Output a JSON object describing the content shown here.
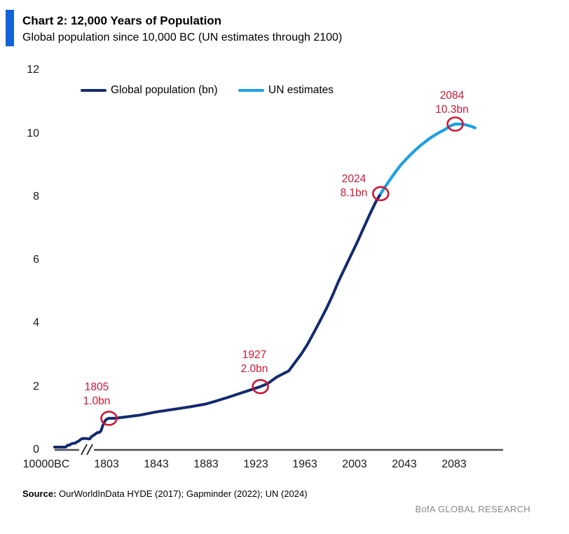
{
  "header": {
    "title": "Chart 2: 12,000 Years of Population",
    "subtitle": "Global population since 10,000 BC (UN estimates through 2100)"
  },
  "theme": {
    "accent_blue": "#1262d9",
    "historical_navy": "#132a6f",
    "projection_blue": "#1ea0e3",
    "callout_red": "#ce1633",
    "axis_color": "#4d4d4d",
    "brand_gray": "#8a8a8a"
  },
  "legend": {
    "items": [
      {
        "label": "Global population (bn)",
        "color": "#132a6f"
      },
      {
        "label": "UN estimates",
        "color": "#1ea0e3"
      }
    ]
  },
  "axes": {
    "y_ticks": [
      "12",
      "10",
      "8",
      "6",
      "4",
      "2",
      "0"
    ],
    "x_ticks": [
      "10000BC",
      "1803",
      "1843",
      "1883",
      "1923",
      "1963",
      "2003",
      "2043",
      "2083"
    ]
  },
  "annotations": [
    {
      "year": "1805",
      "value": "1.0bn"
    },
    {
      "year": "1927",
      "value": "2.0bn"
    },
    {
      "year": "2024",
      "value": "8.1bn"
    },
    {
      "year": "2084",
      "value": "10.3bn"
    }
  ],
  "footer": {
    "source_label": "Source:",
    "source_text": "OurWorldInData HYDE (2017); Gapminder (2022); UN (2024)",
    "brand": "BofA GLOBAL RESEARCH"
  },
  "chart_data": {
    "type": "line",
    "title": "Chart 2: 12,000 Years of Population",
    "subtitle": "Global population since 10,000 BC (UN estimates through 2100)",
    "unit": "billions of people",
    "ylim": [
      0,
      12
    ],
    "grid": false,
    "legend_position": "top-left-inside",
    "x_axis": {
      "broken_axis": true,
      "break_between": [
        "10000BC",
        "1803"
      ],
      "tick_interval_years": 40,
      "end_year": 2100
    },
    "series": [
      {
        "name": "Global population (bn)",
        "color": "#132a6f",
        "segment": "historical",
        "ancient_points": [
          [
            -10000,
            0.004
          ],
          [
            -8000,
            0.01
          ],
          [
            -6000,
            0.02
          ],
          [
            -4000,
            0.03
          ],
          [
            -3000,
            0.05
          ],
          [
            -2000,
            0.07
          ],
          [
            -1000,
            0.09
          ],
          [
            -500,
            0.15
          ],
          [
            -200,
            0.15
          ],
          [
            1,
            0.19
          ],
          [
            200,
            0.21
          ],
          [
            500,
            0.21
          ],
          [
            700,
            0.25
          ],
          [
            1000,
            0.28
          ],
          [
            1100,
            0.33
          ],
          [
            1200,
            0.36
          ],
          [
            1250,
            0.36
          ],
          [
            1300,
            0.36
          ],
          [
            1350,
            0.35
          ],
          [
            1400,
            0.35
          ],
          [
            1450,
            0.43
          ],
          [
            1500,
            0.46
          ],
          [
            1550,
            0.5
          ],
          [
            1600,
            0.55
          ],
          [
            1650,
            0.55
          ],
          [
            1700,
            0.6
          ],
          [
            1750,
            0.77
          ],
          [
            1780,
            0.9
          ],
          [
            1803,
            0.97
          ]
        ],
        "points": [
          [
            1803,
            0.97
          ],
          [
            1805,
            1.0
          ],
          [
            1810,
            1.0
          ],
          [
            1820,
            1.05
          ],
          [
            1830,
            1.1
          ],
          [
            1843,
            1.2
          ],
          [
            1850,
            1.24
          ],
          [
            1860,
            1.3
          ],
          [
            1870,
            1.36
          ],
          [
            1883,
            1.45
          ],
          [
            1890,
            1.53
          ],
          [
            1900,
            1.65
          ],
          [
            1910,
            1.78
          ],
          [
            1920,
            1.91
          ],
          [
            1927,
            2.0
          ],
          [
            1933,
            2.1
          ],
          [
            1940,
            2.3
          ],
          [
            1950,
            2.5
          ],
          [
            1955,
            2.77
          ],
          [
            1960,
            3.03
          ],
          [
            1965,
            3.34
          ],
          [
            1970,
            3.7
          ],
          [
            1975,
            4.07
          ],
          [
            1980,
            4.45
          ],
          [
            1985,
            4.87
          ],
          [
            1990,
            5.33
          ],
          [
            1995,
            5.74
          ],
          [
            2000,
            6.15
          ],
          [
            2005,
            6.56
          ],
          [
            2010,
            7.0
          ],
          [
            2015,
            7.43
          ],
          [
            2020,
            7.84
          ],
          [
            2024,
            8.1
          ]
        ]
      },
      {
        "name": "UN estimates",
        "color": "#1ea0e3",
        "segment": "projection",
        "points": [
          [
            2024,
            8.1
          ],
          [
            2028,
            8.34
          ],
          [
            2032,
            8.57
          ],
          [
            2036,
            8.79
          ],
          [
            2040,
            9.0
          ],
          [
            2044,
            9.17
          ],
          [
            2048,
            9.33
          ],
          [
            2052,
            9.48
          ],
          [
            2056,
            9.62
          ],
          [
            2060,
            9.74
          ],
          [
            2064,
            9.86
          ],
          [
            2068,
            9.96
          ],
          [
            2072,
            10.05
          ],
          [
            2076,
            10.13
          ],
          [
            2080,
            10.24
          ],
          [
            2084,
            10.3
          ],
          [
            2088,
            10.3
          ],
          [
            2092,
            10.28
          ],
          [
            2096,
            10.24
          ],
          [
            2100,
            10.18
          ]
        ]
      }
    ],
    "callouts": [
      {
        "year": 1805,
        "value_bn": 1.0,
        "label": "1805 1.0bn"
      },
      {
        "year": 1927,
        "value_bn": 2.0,
        "label": "1927 2.0bn"
      },
      {
        "year": 2024,
        "value_bn": 8.1,
        "label": "2024 8.1bn"
      },
      {
        "year": 2084,
        "value_bn": 10.3,
        "label": "2084 10.3bn"
      }
    ]
  }
}
